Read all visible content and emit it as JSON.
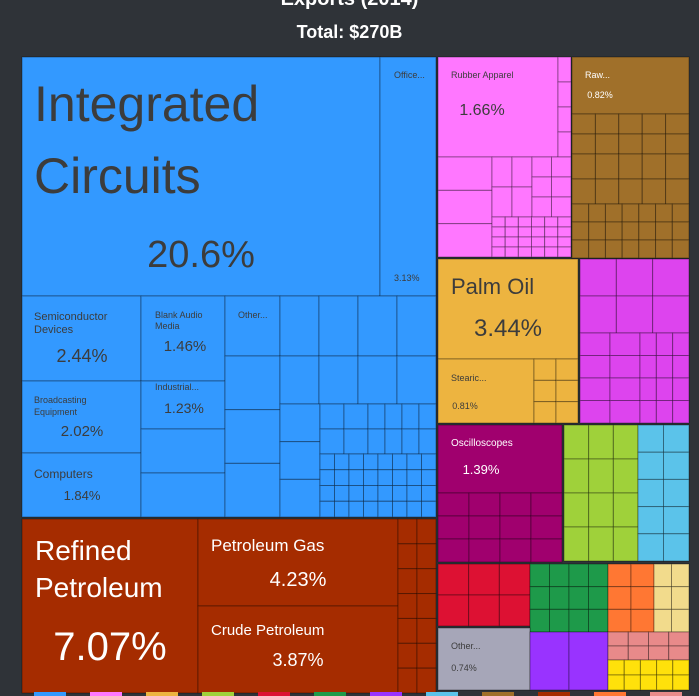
{
  "subtitle": "Total: $270B",
  "chart_data": {
    "type": "treemap",
    "subtitle": "Total: $270B",
    "tiles": [
      {
        "name": "Integrated Circuits",
        "value": 20.6,
        "label": "20.6%",
        "color": "#3399ff"
      },
      {
        "name": "Office...",
        "value": 3.13,
        "label": "3.13%",
        "color": "#3399ff"
      },
      {
        "name": "Semiconductor Devices",
        "value": 2.44,
        "label": "2.44%",
        "color": "#3399ff"
      },
      {
        "name": "Blank Audio Media",
        "value": 1.46,
        "label": "1.46%",
        "color": "#3399ff"
      },
      {
        "name": "Other...",
        "value": null,
        "label": "",
        "color": "#3399ff"
      },
      {
        "name": "Broadcasting Equipment",
        "value": 2.02,
        "label": "2.02%",
        "color": "#3399ff"
      },
      {
        "name": "Industrial...",
        "value": 1.23,
        "label": "1.23%",
        "color": "#3399ff"
      },
      {
        "name": "Computers",
        "value": 1.84,
        "label": "1.84%",
        "color": "#3399ff"
      },
      {
        "name": "Refined Petroleum",
        "value": 7.07,
        "label": "7.07%",
        "color": "#a52c00"
      },
      {
        "name": "Petroleum Gas",
        "value": 4.23,
        "label": "4.23%",
        "color": "#a52c00"
      },
      {
        "name": "Crude Petroleum",
        "value": 3.87,
        "label": "3.87%",
        "color": "#a52c00"
      },
      {
        "name": "Rubber Apparel",
        "value": 1.66,
        "label": "1.66%",
        "color": "#ff77ff"
      },
      {
        "name": "Raw...",
        "value": 0.82,
        "label": "0.82%",
        "color": "#a0702a"
      },
      {
        "name": "Palm Oil",
        "value": 3.44,
        "label": "3.44%",
        "color": "#edb440"
      },
      {
        "name": "Stearic...",
        "value": 0.81,
        "label": "0.81%",
        "color": "#edb440"
      },
      {
        "name": "Oscilloscopes",
        "value": 1.39,
        "label": "1.39%",
        "color": "#a0006e"
      },
      {
        "name": "Other...",
        "value": 0.74,
        "label": "0.74%",
        "color": "#a6a6b8"
      }
    ]
  }
}
